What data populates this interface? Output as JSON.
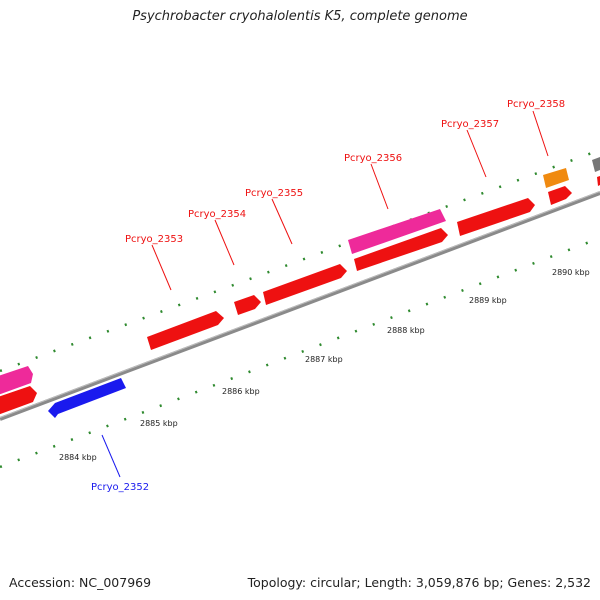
{
  "title": "Psychrobacter cryohalolentis K5, complete genome",
  "footer": {
    "accession": "Accession: NC_007969",
    "summary": "Topology: circular; Length: 3,059,876 bp; Genes: 2,532"
  },
  "colors": {
    "forward_gene": "#ee1111",
    "reverse_gene": "#1a1aee",
    "rna_gene": "#ee2a9a",
    "other_gene": "#f08a10",
    "grey_gene": "#777777",
    "backbone": "#8a8a8a",
    "ticks": "#2f8a2f"
  },
  "scale": {
    "labels": [
      "2884 kbp",
      "2885 kbp",
      "2886 kbp",
      "2887 kbp",
      "2888 kbp",
      "2889 kbp",
      "2890 kbp"
    ]
  },
  "genes": [
    {
      "name": "Pcryo_2352",
      "strand": "reverse",
      "color": "#1a1aee"
    },
    {
      "name": "Pcryo_2353",
      "strand": "forward",
      "color": "#ee1111"
    },
    {
      "name": "Pcryo_2354",
      "strand": "forward",
      "color": "#ee1111"
    },
    {
      "name": "Pcryo_2355",
      "strand": "forward",
      "color": "#ee1111"
    },
    {
      "name": "Pcryo_2356",
      "strand": "forward",
      "color": "#ee1111"
    },
    {
      "name": "Pcryo_2357",
      "strand": "forward",
      "color": "#ee1111"
    },
    {
      "name": "Pcryo_2358",
      "strand": "forward",
      "color": "#f08a10"
    }
  ]
}
